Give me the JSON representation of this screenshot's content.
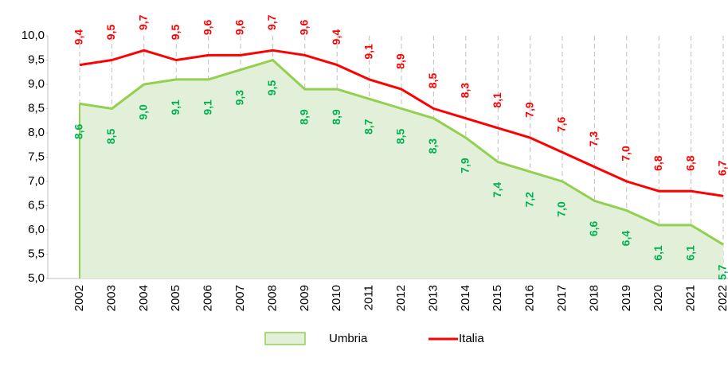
{
  "chart_data": {
    "type": "line",
    "categories": [
      "2002",
      "2003",
      "2004",
      "2005",
      "2006",
      "2007",
      "2008",
      "2009",
      "2010",
      "2011",
      "2012",
      "2013",
      "2014",
      "2015",
      "2016",
      "2017",
      "2018",
      "2019",
      "2020",
      "2021",
      "2022"
    ],
    "series": [
      {
        "name": "Umbria",
        "color": "#92d050",
        "area": true,
        "fill_color": "#e2efd9",
        "label_color": "#00b050",
        "values": [
          8.6,
          8.5,
          9.0,
          9.1,
          9.1,
          9.3,
          9.5,
          8.9,
          8.9,
          8.7,
          8.5,
          8.3,
          7.9,
          7.4,
          7.2,
          7.0,
          6.6,
          6.4,
          6.1,
          6.1,
          5.7
        ],
        "value_labels": [
          "8,6",
          "8,5",
          "9,0",
          "9,1",
          "9,1",
          "9,3",
          "9,5",
          "8,9",
          "8,9",
          "8,7",
          "8,5",
          "8,3",
          "7,9",
          "7,4",
          "7,2",
          "7,0",
          "6,6",
          "6,4",
          "6,1",
          "6,1",
          "5,7"
        ]
      },
      {
        "name": "Italia",
        "color": "#ff0000",
        "area": false,
        "label_color": "#ff0000",
        "values": [
          9.4,
          9.5,
          9.7,
          9.5,
          9.6,
          9.6,
          9.7,
          9.6,
          9.4,
          9.1,
          8.9,
          8.5,
          8.3,
          8.1,
          7.9,
          7.6,
          7.3,
          7.0,
          6.8,
          6.8,
          6.7
        ],
        "value_labels": [
          "9,4",
          "9,5",
          "9,7",
          "9,5",
          "9,6",
          "9,6",
          "9,7",
          "9,6",
          "9,4",
          "9,1",
          "8,9",
          "8,5",
          "8,3",
          "8,1",
          "7,9",
          "7,6",
          "7,3",
          "7,0",
          "6,8",
          "6,8",
          "6,7"
        ]
      }
    ],
    "ylim": [
      5.0,
      10.0
    ],
    "yticks": [
      {
        "value": 5.0,
        "label": "5,0"
      },
      {
        "value": 5.5,
        "label": "5,5"
      },
      {
        "value": 6.0,
        "label": "6,0"
      },
      {
        "value": 6.5,
        "label": "6,5"
      },
      {
        "value": 7.0,
        "label": "7,0"
      },
      {
        "value": 7.5,
        "label": "7,5"
      },
      {
        "value": 8.0,
        "label": "8,0"
      },
      {
        "value": 8.5,
        "label": "8,5"
      },
      {
        "value": 9.0,
        "label": "9,0"
      },
      {
        "value": 9.5,
        "label": "9,5"
      },
      {
        "value": 10.0,
        "label": "10,0"
      }
    ],
    "grid": "vertical-dashed",
    "legend": "bottom"
  }
}
